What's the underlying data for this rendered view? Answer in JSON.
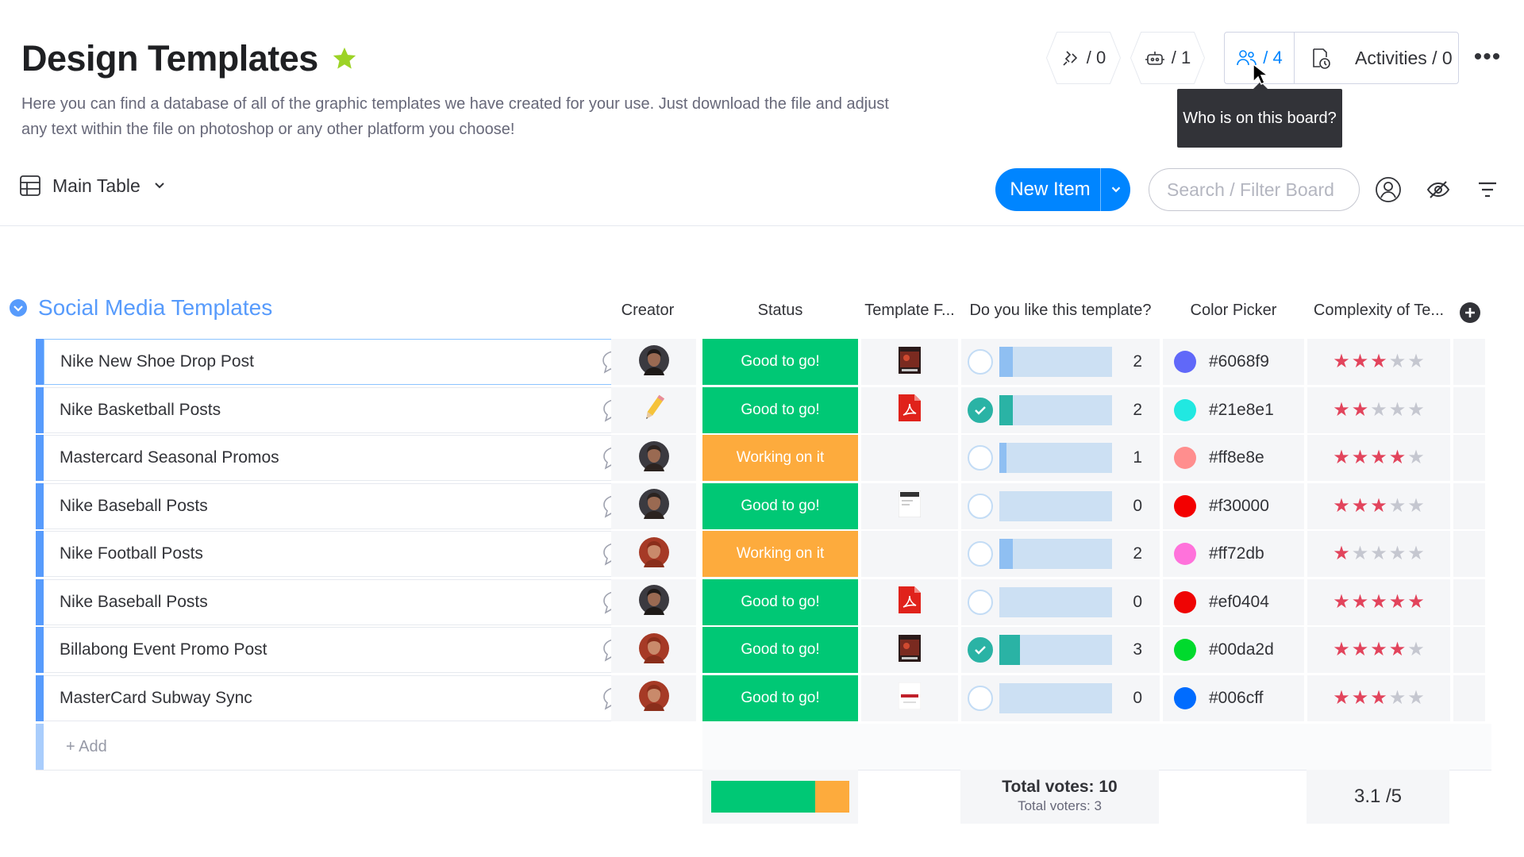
{
  "board": {
    "title": "Design Templates",
    "description": "Here you can find a database of all of the graphic templates we have created for your use. Just download the file and adjust any text within the file on photoshop or any other platform you choose!"
  },
  "header": {
    "integrations_count": "/ 0",
    "automations_count": "/ 1",
    "members_count": "/ 4",
    "activities_label": "Activities / 0",
    "more_label": "•••",
    "tooltip": "Who is on this board?"
  },
  "view": {
    "main_table_label": "Main Table",
    "new_item_label": "New Item",
    "search_placeholder": "Search / Filter Board"
  },
  "group": {
    "title": "Social Media Templates",
    "columns": {
      "creator": "Creator",
      "status": "Status",
      "file": "Template F...",
      "vote": "Do you like this template?",
      "color": "Color Picker",
      "rating": "Complexity of Te..."
    },
    "add_label": "+ Add"
  },
  "colors": {
    "good": "#00c875",
    "working": "#fdab3d",
    "accent": "#0085ff",
    "group": "#579bfc"
  },
  "rows": [
    {
      "name": "Nike New Shoe Drop Post",
      "creator": "avatar-man-dark",
      "status": "Good to go!",
      "status_type": "good",
      "file": "image-thumb",
      "voted": false,
      "votes": "2",
      "vote_fraction": 0.12,
      "color_hex": "#6068f9",
      "color_label": "#6068f9",
      "rating": 3
    },
    {
      "name": "Nike Basketball Posts",
      "creator": "pencil-icon",
      "status": "Good to go!",
      "status_type": "good",
      "file": "pdf-icon",
      "voted": true,
      "votes": "2",
      "vote_fraction": 0.12,
      "color_hex": "#21e8e1",
      "color_label": "#21e8e1",
      "rating": 2
    },
    {
      "name": "Mastercard Seasonal Promos",
      "creator": "avatar-woman-dark",
      "status": "Working on it",
      "status_type": "working",
      "file": "",
      "voted": false,
      "votes": "1",
      "vote_fraction": 0.06,
      "color_hex": "#ff8e8e",
      "color_label": "#ff8e8e",
      "rating": 4
    },
    {
      "name": "Nike Baseball Posts",
      "creator": "avatar-woman-dark",
      "status": "Good to go!",
      "status_type": "good",
      "file": "doc-thumb",
      "voted": false,
      "votes": "0",
      "vote_fraction": 0,
      "color_hex": "#f30000",
      "color_label": "#f30000",
      "rating": 3
    },
    {
      "name": "Nike Football Posts",
      "creator": "avatar-woman-red",
      "status": "Working on it",
      "status_type": "working",
      "file": "",
      "voted": false,
      "votes": "2",
      "vote_fraction": 0.12,
      "color_hex": "#ff72db",
      "color_label": "#ff72db",
      "rating": 1
    },
    {
      "name": "Nike Baseball Posts",
      "creator": "avatar-man-dark",
      "status": "Good to go!",
      "status_type": "good",
      "file": "pdf-icon",
      "voted": false,
      "votes": "0",
      "vote_fraction": 0,
      "color_hex": "#ef0404",
      "color_label": "#ef0404",
      "rating": 5
    },
    {
      "name": "Billabong Event Promo Post",
      "creator": "avatar-woman-red",
      "status": "Good to go!",
      "status_type": "good",
      "file": "image-thumb",
      "voted": true,
      "votes": "3",
      "vote_fraction": 0.18,
      "color_hex": "#00da2d",
      "color_label": "#00da2d",
      "rating": 4
    },
    {
      "name": "MasterCard Subway Sync",
      "creator": "avatar-woman-red",
      "status": "Good to go!",
      "status_type": "good",
      "file": "doc-red-thumb",
      "voted": false,
      "votes": "0",
      "vote_fraction": 0,
      "color_hex": "#006cff",
      "color_label": "#006cff",
      "rating": 3
    }
  ],
  "summary": {
    "status_good_fraction": 0.75,
    "status_working_fraction": 0.25,
    "total_votes": "Total votes: 10",
    "total_voters": "Total voters: 3",
    "rating_avg": "3.1 /5"
  }
}
